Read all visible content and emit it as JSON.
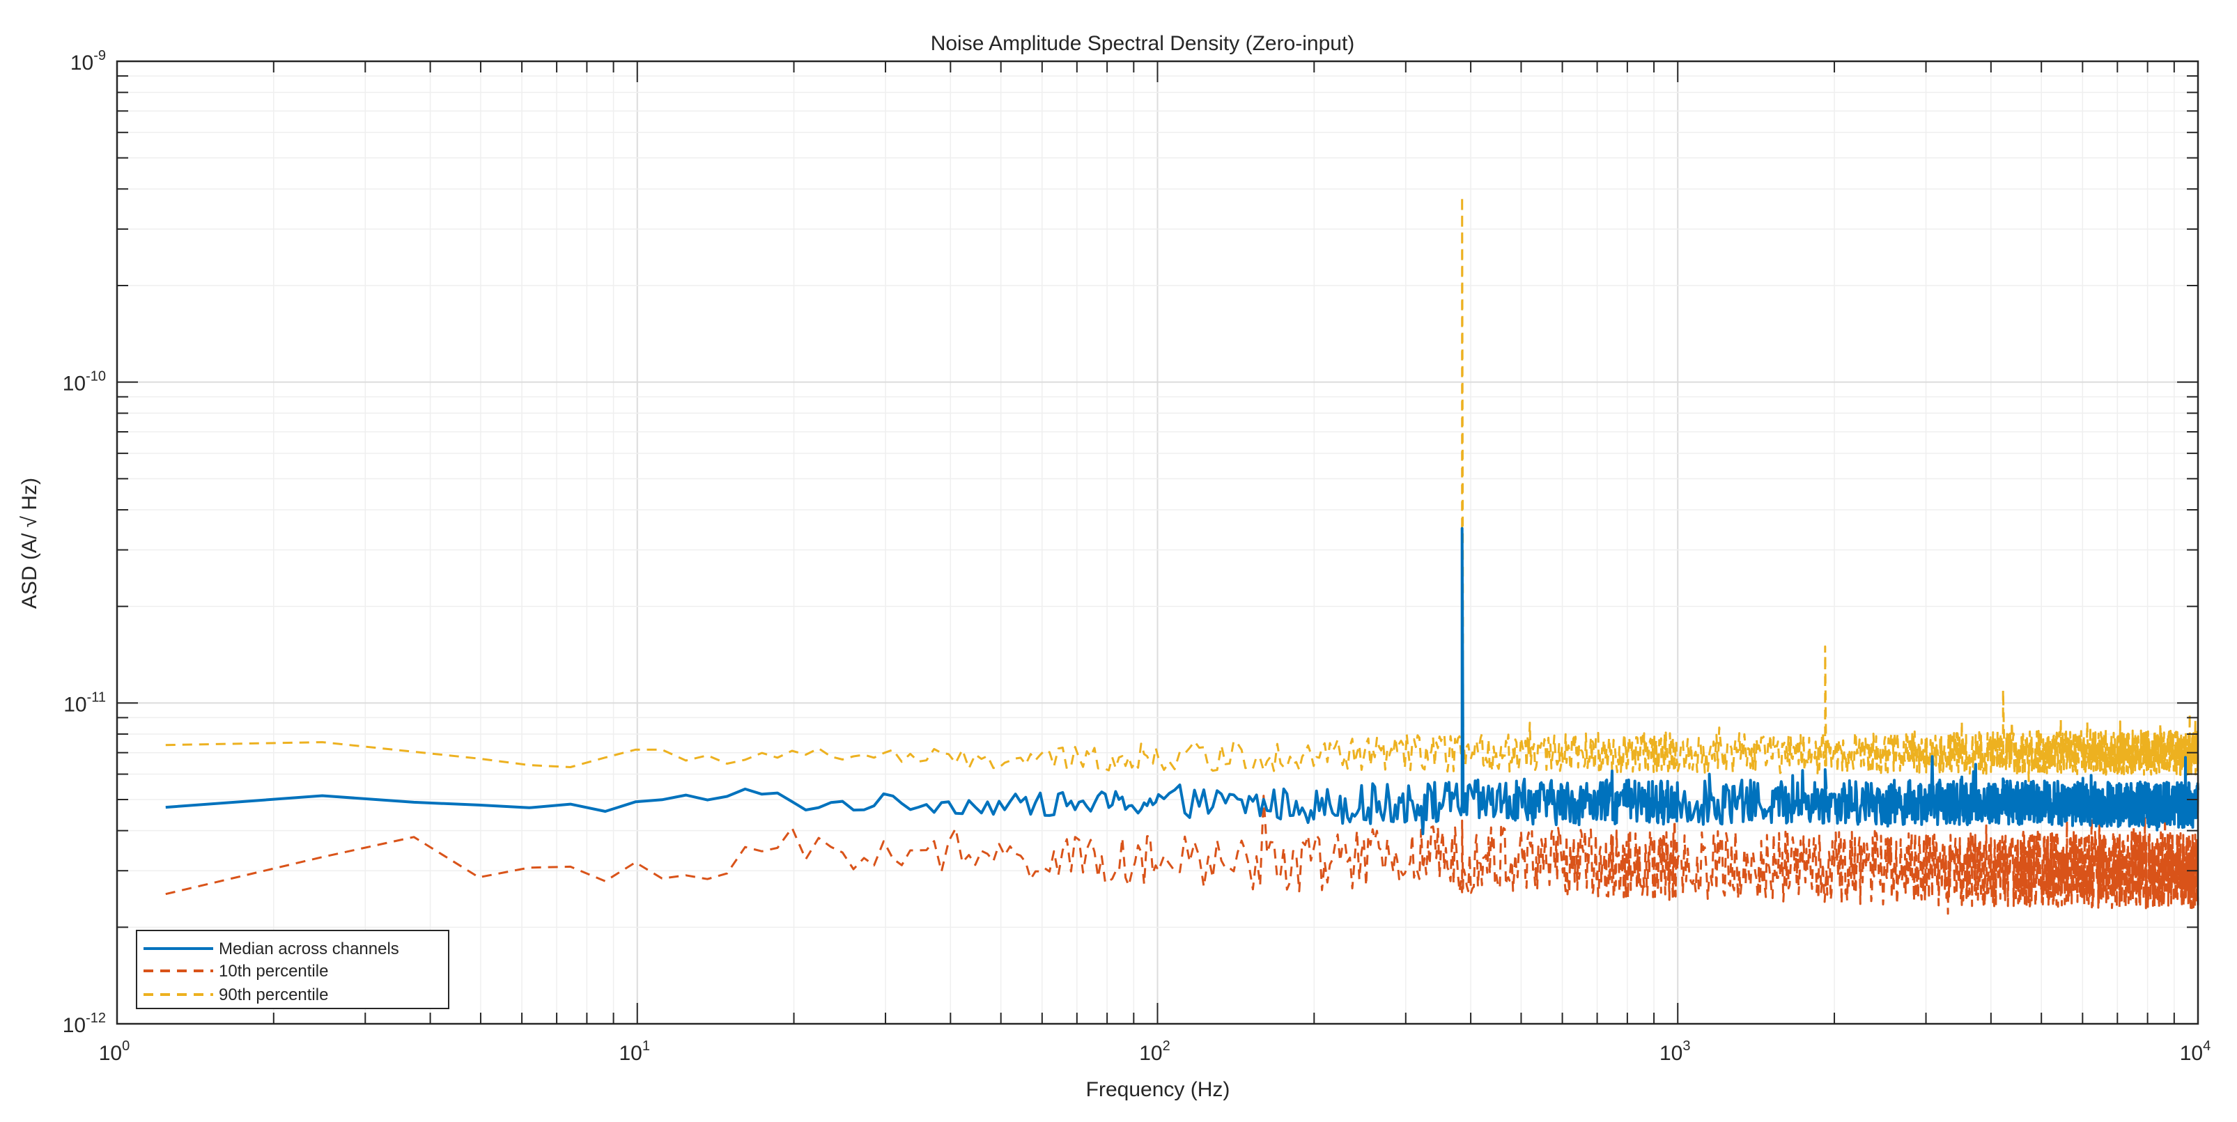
{
  "chart_data": {
    "type": "line",
    "title": "Noise Amplitude Spectral Density (Zero-input)",
    "xlabel": "Frequency (Hz)",
    "ylabel": "ASD (A/ √ Hz)",
    "xscale": "log",
    "yscale": "log",
    "xlim": [
      1,
      10000
    ],
    "ylim": [
      1e-12,
      1e-09
    ],
    "grid": true,
    "minor_grid": true,
    "x_ticks": [
      {
        "base": "10",
        "exp": "0",
        "value": 1
      },
      {
        "base": "10",
        "exp": "1",
        "value": 10
      },
      {
        "base": "10",
        "exp": "2",
        "value": 100
      },
      {
        "base": "10",
        "exp": "3",
        "value": 1000
      },
      {
        "base": "10",
        "exp": "4",
        "value": 10000
      }
    ],
    "y_ticks": [
      {
        "base": "10",
        "exp": "-12",
        "value": 1e-12
      },
      {
        "base": "10",
        "exp": "-11",
        "value": 1e-11
      },
      {
        "base": "10",
        "exp": "-10",
        "value": 1e-10
      },
      {
        "base": "10",
        "exp": "-9",
        "value": 1e-09
      }
    ],
    "legend_position": "southwest",
    "series": [
      {
        "name": "Median across channels",
        "style": "solid",
        "color": "#0072BD",
        "x": [
          1.24,
          2.4,
          3.6,
          5,
          7,
          10,
          14,
          17,
          22,
          30,
          50,
          100,
          200,
          385,
          1000,
          1920,
          4220,
          10000
        ],
        "y": [
          4.7e-12,
          5.1e-12,
          4.8e-12,
          4.9e-12,
          4.75e-12,
          4.8e-12,
          5.1e-12,
          5.2e-12,
          4.8e-12,
          4.9e-12,
          4.8e-12,
          4.9e-12,
          4.8e-12,
          4.9e-12,
          4.9e-12,
          4.9e-12,
          4.9e-12,
          4.8e-12
        ],
        "spikes": [
          {
            "x": 385,
            "y": 3.5e-11
          },
          {
            "x": 1920,
            "y": 6.2e-12
          },
          {
            "x": 1150,
            "y": 6e-12
          },
          {
            "x": 4220,
            "y": 5.8e-12
          }
        ],
        "noise_decades": [
          [
            1,
            0.005
          ],
          [
            40,
            0.03
          ],
          [
            150,
            0.05
          ],
          [
            400,
            0.07
          ],
          [
            10000,
            0.07
          ]
        ]
      },
      {
        "name": "10th percentile",
        "style": "dashed",
        "color": "#D95319",
        "x": [
          1.24,
          2.4,
          3.6,
          5,
          6.3,
          8,
          10,
          14,
          17,
          25,
          40,
          100,
          200,
          385,
          1000,
          10000
        ],
        "y": [
          2.6e-12,
          3.2e-12,
          3.7e-12,
          2.9e-12,
          3.2e-12,
          2.7e-12,
          3e-12,
          2.8e-12,
          3.8e-12,
          3.4e-12,
          3.3e-12,
          3.2e-12,
          3.2e-12,
          3.3e-12,
          3.1e-12,
          3e-12
        ],
        "spikes": [
          {
            "x": 385,
            "y": 4.3e-12
          }
        ],
        "noise_decades": [
          [
            1,
            0.01
          ],
          [
            40,
            0.06
          ],
          [
            150,
            0.09
          ],
          [
            400,
            0.11
          ],
          [
            10000,
            0.12
          ]
        ]
      },
      {
        "name": "90th percentile",
        "style": "dashed",
        "color": "#EDB120",
        "x": [
          1.24,
          2.4,
          3.6,
          5,
          7,
          8.5,
          10,
          14,
          20,
          30,
          50,
          100,
          200,
          385,
          1000,
          10000
        ],
        "y": [
          7.4e-12,
          7.5e-12,
          7.3e-12,
          6.7e-12,
          6.4e-12,
          6.5e-12,
          6.9e-12,
          6.7e-12,
          7e-12,
          6.8e-12,
          6.6e-12,
          6.8e-12,
          6.9e-12,
          7e-12,
          7e-12,
          7e-12
        ],
        "spikes": [
          {
            "x": 385,
            "y": 3.8e-10
          },
          {
            "x": 1920,
            "y": 1.5e-11
          },
          {
            "x": 4220,
            "y": 1.1e-11
          }
        ],
        "noise_decades": [
          [
            1,
            0.005
          ],
          [
            40,
            0.03
          ],
          [
            150,
            0.05
          ],
          [
            400,
            0.06
          ],
          [
            10000,
            0.07
          ]
        ]
      }
    ]
  },
  "legend": {
    "items": [
      {
        "label": "Median across channels",
        "color": "#0072BD",
        "style": "solid"
      },
      {
        "label": "10th percentile",
        "color": "#D95319",
        "style": "dashed"
      },
      {
        "label": "90th percentile",
        "color": "#EDB120",
        "style": "dashed"
      }
    ]
  }
}
